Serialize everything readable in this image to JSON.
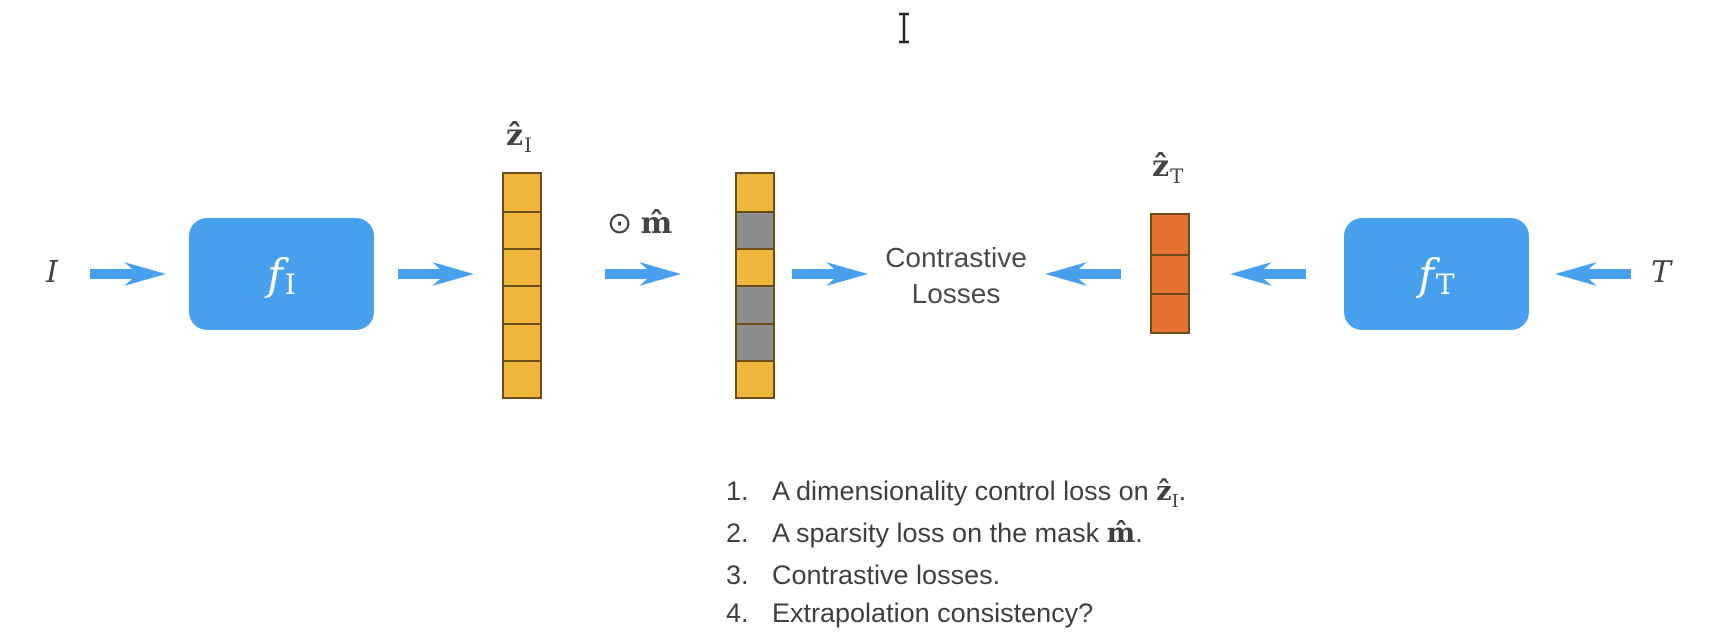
{
  "inputs": {
    "image": "I",
    "text": "T"
  },
  "encoders": {
    "image": {
      "f": "f",
      "sub": "I"
    },
    "text": {
      "f": "f",
      "sub": "T"
    }
  },
  "vectors": {
    "z_image": {
      "symbol": "ẑ",
      "sub": "I",
      "cells": [
        "#f0b63c",
        "#f0b63c",
        "#f0b63c",
        "#f0b63c",
        "#f0b63c",
        "#f0b63c"
      ]
    },
    "masked": {
      "cells": [
        "#f0b63c",
        "#8d8d8d",
        "#f0b63c",
        "#8d8d8d",
        "#8d8d8d",
        "#f0b63c"
      ]
    },
    "z_text": {
      "symbol": "ẑ",
      "sub": "T",
      "cells": [
        "#e3732e",
        "#e3732e",
        "#e3732e"
      ]
    }
  },
  "mask_op": {
    "op": "⊙",
    "mask": "m̂"
  },
  "contrastive": {
    "line1": "Contrastive",
    "line2": "Losses"
  },
  "list": [
    {
      "num": "1.",
      "text": "A dimensionality control loss on ",
      "sym": "ẑ",
      "sub": "I",
      "end": "."
    },
    {
      "num": "2.",
      "text": "A sparsity loss on the mask ",
      "sym": "m̂",
      "sub": "",
      "end": "."
    },
    {
      "num": "3.",
      "text": "Contrastive losses.",
      "sym": "",
      "sub": "",
      "end": ""
    },
    {
      "num": "4.",
      "text": "Extrapolation consistency?",
      "sym": "",
      "sub": "",
      "end": ""
    }
  ],
  "colors": {
    "arrow": "#47a0ee",
    "encoder": "#47a0ee",
    "orange_cell": "#f0b63c",
    "gray_cell": "#8d8d8d",
    "text_cell": "#e3732e"
  },
  "cursor_icon": "text-cursor-icon"
}
